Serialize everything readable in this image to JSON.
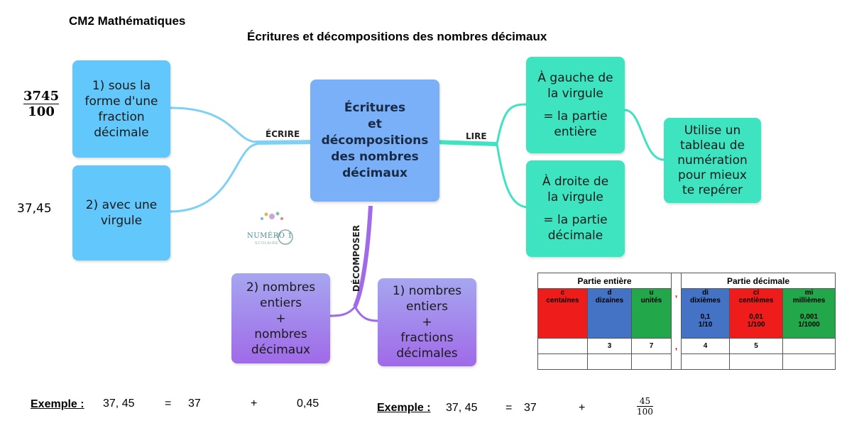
{
  "header": {
    "subject": "CM2 Mathématiques",
    "title": "Écritures et décompositions des nombres décimaux"
  },
  "center": {
    "lines": [
      "Écritures",
      "et",
      "décompositions",
      "des nombres",
      "décimaux"
    ]
  },
  "branches": {
    "ecrire": "ÉCRIRE",
    "lire": "LIRE",
    "decomposer": "DÉCOMPOSER"
  },
  "ecrire_nodes": {
    "fraction": {
      "lines": [
        "1) sous la",
        "forme d'une",
        "fraction",
        "décimale"
      ],
      "numerator": "3745",
      "denominator": "100"
    },
    "virgule": {
      "lines": [
        "2) avec une",
        "virgule"
      ],
      "example": "37,45"
    }
  },
  "lire_nodes": {
    "gauche": {
      "lines": [
        "À gauche de",
        "la virgule",
        "",
        "= la partie",
        "entière"
      ]
    },
    "droite": {
      "lines": [
        "À droite de",
        "la virgule",
        "",
        "= la partie",
        "décimale"
      ]
    },
    "tableau": {
      "lines": [
        "Utilise un",
        "tableau de",
        "numération",
        "pour mieux",
        "te repérer"
      ]
    }
  },
  "decomposer_nodes": {
    "decimaux": {
      "lines": [
        "2) nombres",
        "entiers",
        "+",
        "nombres",
        "décimaux"
      ]
    },
    "fractions": {
      "lines": [
        "1) nombres",
        "entiers",
        "+",
        "fractions",
        "décimales"
      ]
    }
  },
  "logo": {
    "text": "NUMÉRO 1",
    "sub": "SCOLAIRE"
  },
  "table": {
    "group_headers": [
      "Partie entière",
      "Partie décimale"
    ],
    "columns": [
      {
        "letter": "c",
        "name": "centaines",
        "value": "",
        "fraction": "",
        "color": "#ef1c1c"
      },
      {
        "letter": "d",
        "name": "dizaines",
        "value": "",
        "fraction": "",
        "color": "#4472c4"
      },
      {
        "letter": "u",
        "name": "unités",
        "value": "",
        "fraction": "",
        "color": "#22a84a"
      },
      {
        "letter": "di",
        "name": "dixièmes",
        "value": "0,1",
        "fraction": "1/10",
        "color": "#4472c4"
      },
      {
        "letter": "ci",
        "name": "centièmes",
        "value": "0,01",
        "fraction": "1/100",
        "color": "#ef1c1c"
      },
      {
        "letter": "mi",
        "name": "millièmes",
        "value": "0,001",
        "fraction": "1/1000",
        "color": "#22a84a"
      }
    ],
    "comma": ",",
    "digits": [
      "",
      "3",
      "7",
      "4",
      "5",
      ""
    ]
  },
  "examples": {
    "label": "Exemple :",
    "left": {
      "number": "37, 45",
      "eq": "=",
      "a": "37",
      "plus": "+",
      "b": "0,45"
    },
    "right": {
      "number": "37, 45",
      "eq": "=",
      "a": "37",
      "plus": "+",
      "num": "45",
      "den": "100"
    }
  }
}
